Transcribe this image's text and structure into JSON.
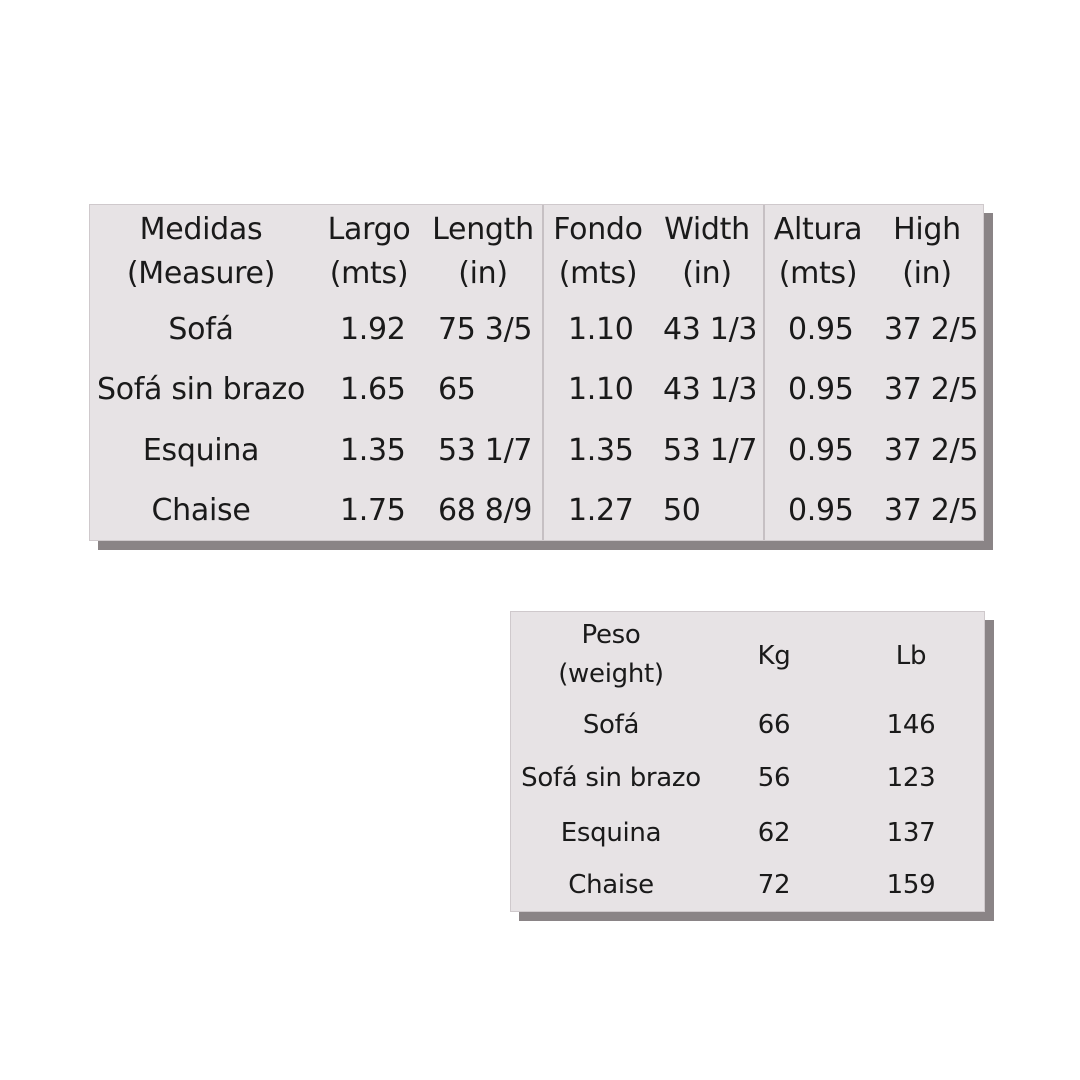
{
  "measures_table": {
    "headers": [
      [
        "Medidas",
        "(Measure)"
      ],
      [
        "Largo",
        "(mts)"
      ],
      [
        "Length",
        "(in)"
      ],
      [
        "Fondo",
        "(mts)"
      ],
      [
        "Width",
        "(in)"
      ],
      [
        "Altura",
        "(mts)"
      ],
      [
        "High",
        "(in)"
      ]
    ],
    "rows": [
      [
        "Sofá",
        "1.92",
        "75 3/5",
        "1.10",
        "43 1/3",
        "0.95",
        "37 2/5"
      ],
      [
        "Sofá sin brazo",
        "1.65",
        "65",
        "1.10",
        "43 1/3",
        "0.95",
        "37 2/5"
      ],
      [
        "Esquina",
        "1.35",
        "53 1/7",
        "1.35",
        "53 1/7",
        "0.95",
        "37 2/5"
      ],
      [
        "Chaise",
        "1.75",
        "68 8/9",
        "1.27",
        "50",
        "0.95",
        "37 2/5"
      ]
    ]
  },
  "weight_table": {
    "headers": [
      [
        "Peso",
        "(weight)"
      ],
      [
        "Kg"
      ],
      [
        "Lb"
      ]
    ],
    "rows": [
      [
        "Sofá",
        "66",
        "146"
      ],
      [
        "Sofá sin brazo",
        "56",
        "123"
      ],
      [
        "Esquina",
        "62",
        "137"
      ],
      [
        "Chaise",
        "72",
        "159"
      ]
    ]
  }
}
